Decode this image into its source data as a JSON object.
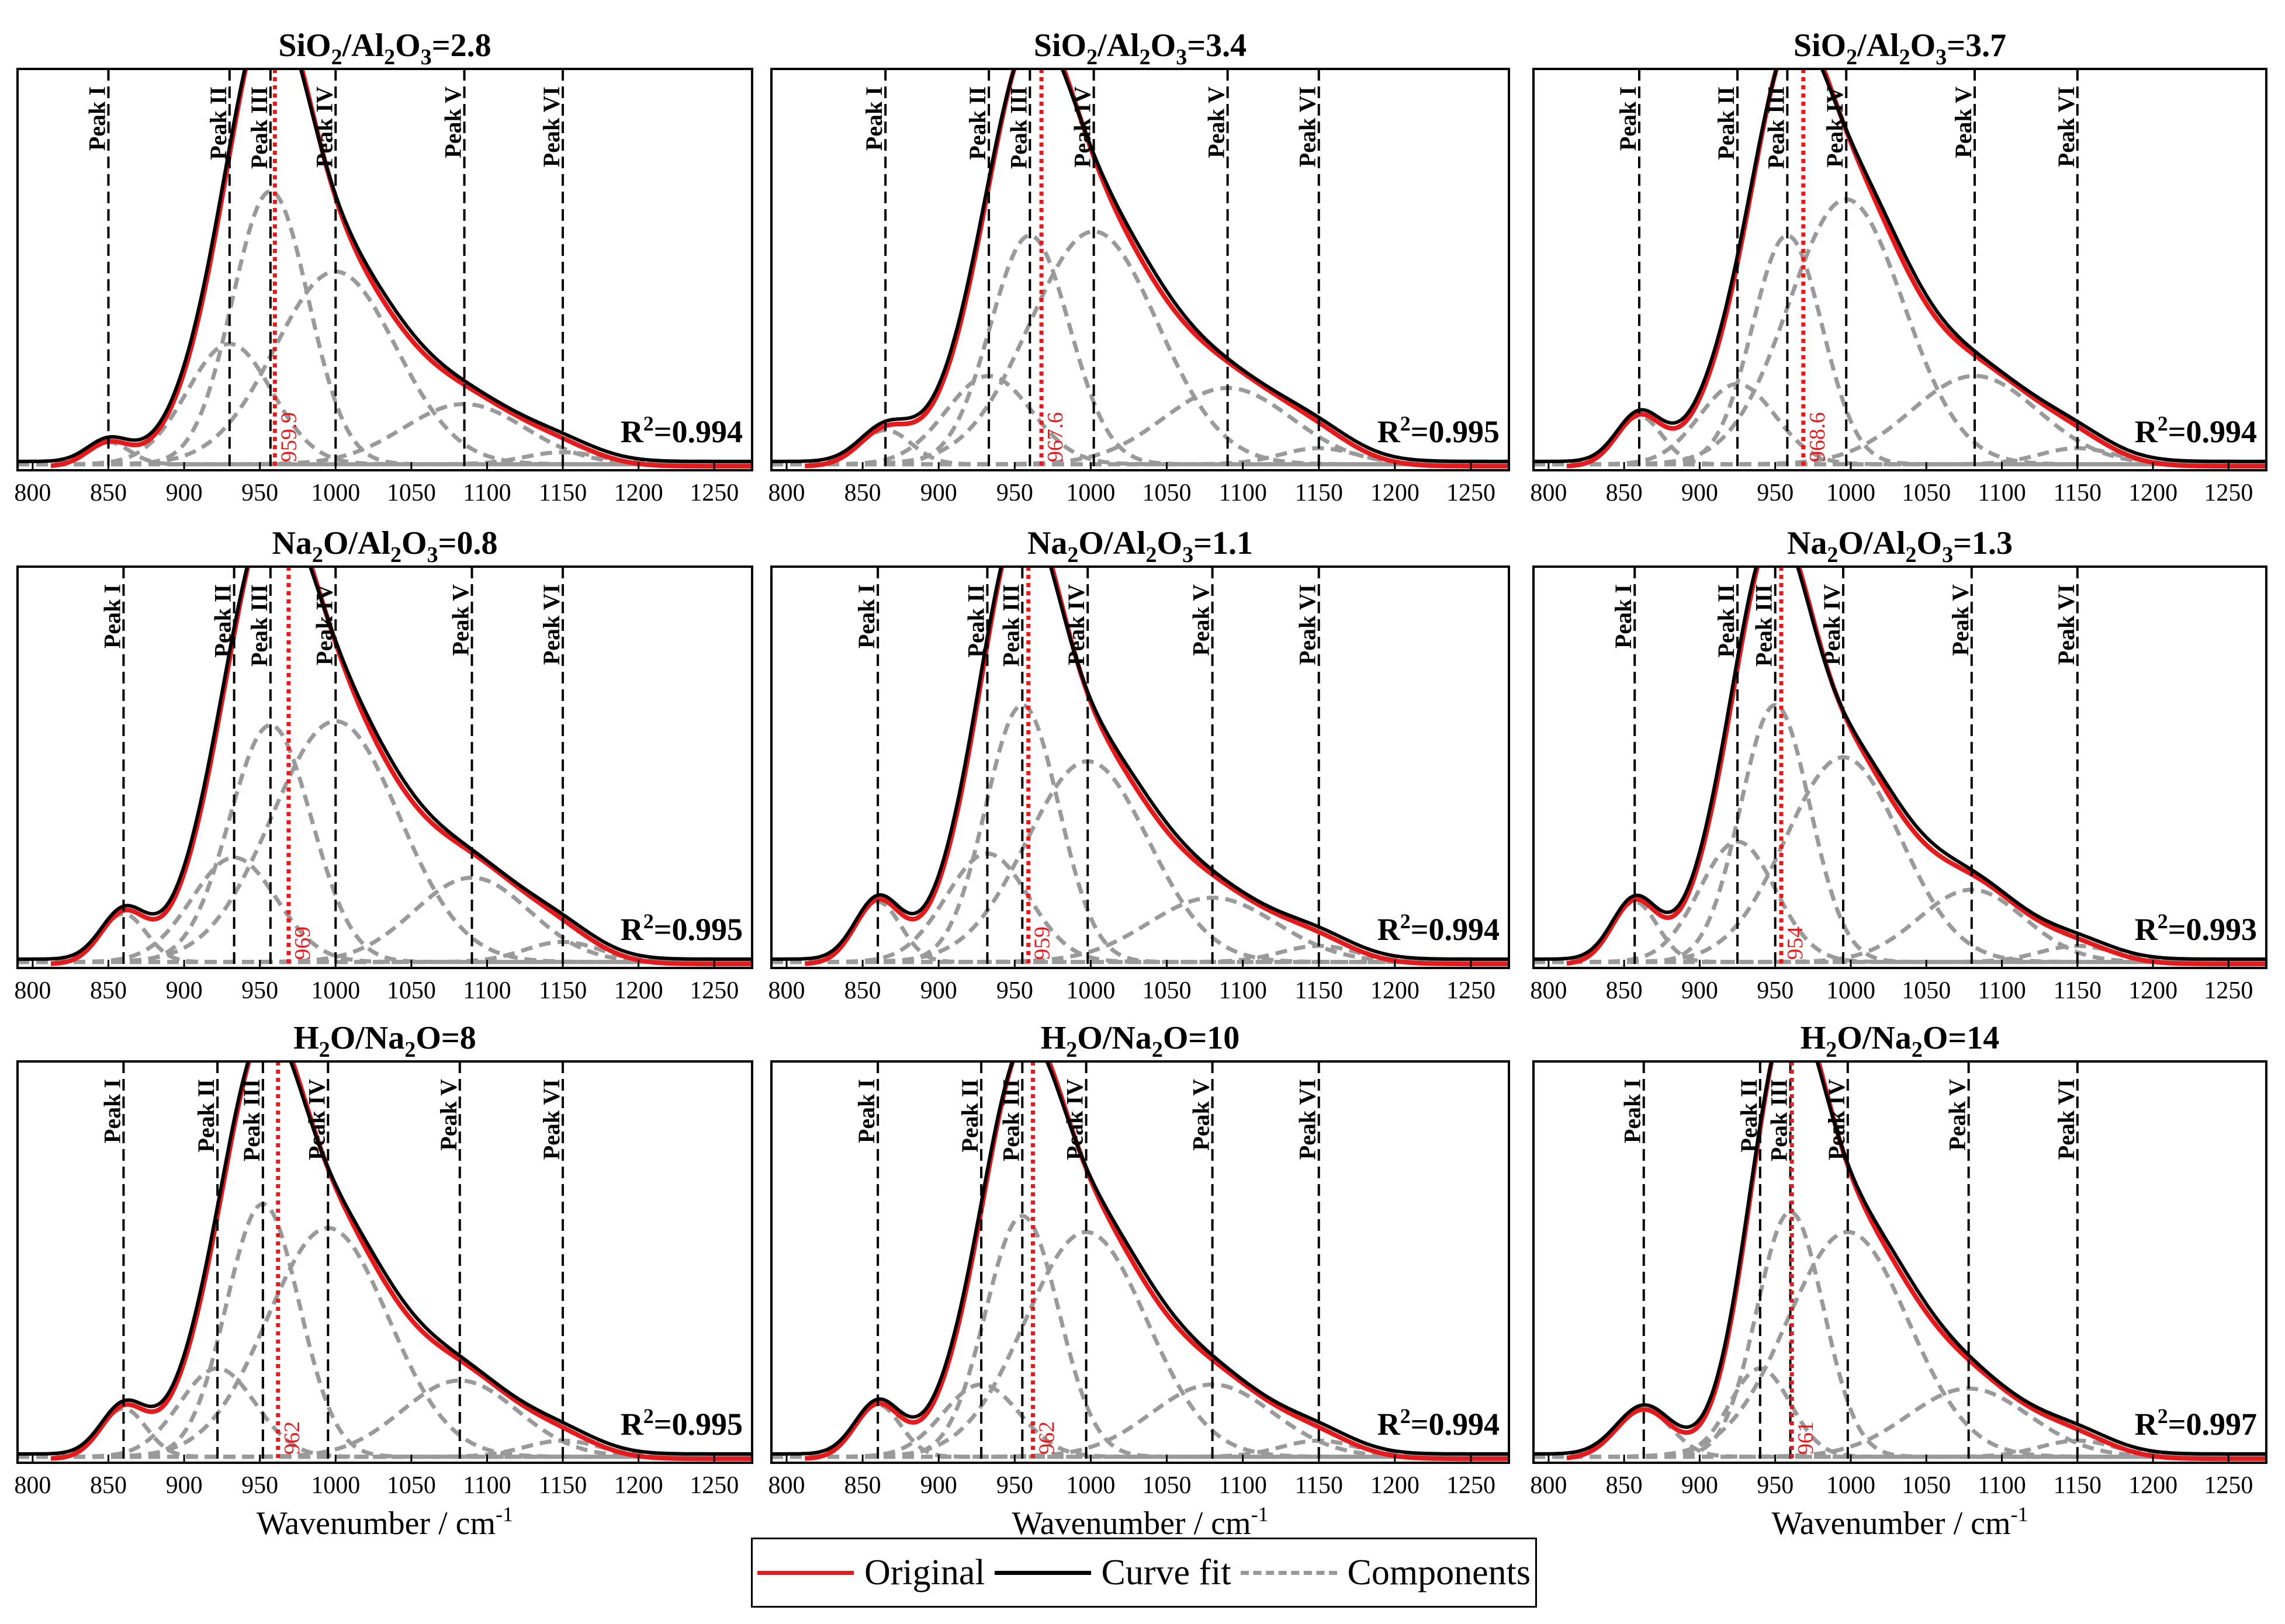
{
  "chart_data": [
    {
      "type": "line",
      "title": {
        "pre": "SiO",
        "s1": "2",
        "mid": "/Al",
        "s2": "2",
        "mid2": "O",
        "s3": "3",
        "post": "=2.8"
      },
      "peaks": [
        {
          "label": "Peak I",
          "x": 850
        },
        {
          "label": "Peak II",
          "x": 930
        },
        {
          "label": "Peak III",
          "x": 957
        },
        {
          "label": "Peak IV",
          "x": 1000
        },
        {
          "label": "Peak V",
          "x": 1085
        },
        {
          "label": "Peak VI",
          "x": 1150
        }
      ],
      "center": 959.9,
      "center_label": "959.9",
      "r2": "0.994",
      "components": [
        {
          "mu": 850,
          "sigma": 14,
          "amp": 0.055
        },
        {
          "mu": 930,
          "sigma": 28,
          "amp": 0.3
        },
        {
          "mu": 957,
          "sigma": 25,
          "amp": 0.68
        },
        {
          "mu": 1000,
          "sigma": 40,
          "amp": 0.48
        },
        {
          "mu": 1085,
          "sigma": 40,
          "amp": 0.15
        },
        {
          "mu": 1150,
          "sigma": 25,
          "amp": 0.03
        }
      ]
    },
    {
      "type": "line",
      "title": {
        "pre": "SiO",
        "s1": "2",
        "mid": "/Al",
        "s2": "2",
        "mid2": "O",
        "s3": "3",
        "post": "=3.4"
      },
      "peaks": [
        {
          "label": "Peak I",
          "x": 865
        },
        {
          "label": "Peak II",
          "x": 933
        },
        {
          "label": "Peak III",
          "x": 960
        },
        {
          "label": "Peak IV",
          "x": 1002
        },
        {
          "label": "Peak V",
          "x": 1090
        },
        {
          "label": "Peak VI",
          "x": 1150
        }
      ],
      "center": 967.6,
      "center_label": "967.6",
      "r2": "0.995",
      "components": [
        {
          "mu": 865,
          "sigma": 17,
          "amp": 0.085
        },
        {
          "mu": 933,
          "sigma": 28,
          "amp": 0.22
        },
        {
          "mu": 960,
          "sigma": 26,
          "amp": 0.57
        },
        {
          "mu": 1002,
          "sigma": 42,
          "amp": 0.58
        },
        {
          "mu": 1090,
          "sigma": 42,
          "amp": 0.19
        },
        {
          "mu": 1150,
          "sigma": 25,
          "amp": 0.04
        }
      ]
    },
    {
      "type": "line",
      "title": {
        "pre": "SiO",
        "s1": "2",
        "mid": "/Al",
        "s2": "2",
        "mid2": "O",
        "s3": "3",
        "post": "=3.7"
      },
      "peaks": [
        {
          "label": "Peak I",
          "x": 860
        },
        {
          "label": "Peak II",
          "x": 925
        },
        {
          "label": "Peak III",
          "x": 958
        },
        {
          "label": "Peak IV",
          "x": 997
        },
        {
          "label": "Peak V",
          "x": 1082
        },
        {
          "label": "Peak VI",
          "x": 1150
        }
      ],
      "center": 968.6,
      "center_label": "968.6",
      "r2": "0.994",
      "components": [
        {
          "mu": 860,
          "sigma": 15,
          "amp": 0.12
        },
        {
          "mu": 925,
          "sigma": 25,
          "amp": 0.2
        },
        {
          "mu": 958,
          "sigma": 23,
          "amp": 0.57
        },
        {
          "mu": 997,
          "sigma": 38,
          "amp": 0.66
        },
        {
          "mu": 1082,
          "sigma": 42,
          "amp": 0.22
        },
        {
          "mu": 1150,
          "sigma": 25,
          "amp": 0.04
        }
      ]
    },
    {
      "type": "line",
      "title": {
        "pre": "Na",
        "s1": "2",
        "mid": "O/Al",
        "s2": "2",
        "mid2": "O",
        "s3": "3",
        "post": "=0.8"
      },
      "peaks": [
        {
          "label": "Peak I",
          "x": 860
        },
        {
          "label": "Peak II",
          "x": 933
        },
        {
          "label": "Peak III",
          "x": 957
        },
        {
          "label": "Peak IV",
          "x": 1000
        },
        {
          "label": "Peak V",
          "x": 1090
        },
        {
          "label": "Peak VI",
          "x": 1150
        }
      ],
      "center": 969,
      "center_label": "969",
      "r2": "0.995",
      "components": [
        {
          "mu": 860,
          "sigma": 15,
          "amp": 0.12
        },
        {
          "mu": 933,
          "sigma": 28,
          "amp": 0.26
        },
        {
          "mu": 957,
          "sigma": 27,
          "amp": 0.59
        },
        {
          "mu": 1000,
          "sigma": 42,
          "amp": 0.6
        },
        {
          "mu": 1090,
          "sigma": 38,
          "amp": 0.21
        },
        {
          "mu": 1150,
          "sigma": 25,
          "amp": 0.05
        }
      ]
    },
    {
      "type": "line",
      "title": {
        "pre": "Na",
        "s1": "2",
        "mid": "O/Al",
        "s2": "2",
        "mid2": "O",
        "s3": "3",
        "post": "=1.1"
      },
      "peaks": [
        {
          "label": "Peak I",
          "x": 860
        },
        {
          "label": "Peak II",
          "x": 932
        },
        {
          "label": "Peak III",
          "x": 955
        },
        {
          "label": "Peak IV",
          "x": 998
        },
        {
          "label": "Peak V",
          "x": 1080
        },
        {
          "label": "Peak VI",
          "x": 1150
        }
      ],
      "center": 959,
      "center_label": "959",
      "r2": "0.994",
      "components": [
        {
          "mu": 860,
          "sigma": 15,
          "amp": 0.15
        },
        {
          "mu": 932,
          "sigma": 27,
          "amp": 0.27
        },
        {
          "mu": 955,
          "sigma": 24,
          "amp": 0.64
        },
        {
          "mu": 998,
          "sigma": 40,
          "amp": 0.5
        },
        {
          "mu": 1080,
          "sigma": 42,
          "amp": 0.16
        },
        {
          "mu": 1150,
          "sigma": 25,
          "amp": 0.04
        }
      ]
    },
    {
      "type": "line",
      "title": {
        "pre": "Na",
        "s1": "2",
        "mid": "O/Al",
        "s2": "2",
        "mid2": "O",
        "s3": "3",
        "post": "=1.3"
      },
      "peaks": [
        {
          "label": "Peak I",
          "x": 857
        },
        {
          "label": "Peak II",
          "x": 925
        },
        {
          "label": "Peak III",
          "x": 950
        },
        {
          "label": "Peak IV",
          "x": 995
        },
        {
          "label": "Peak V",
          "x": 1080
        },
        {
          "label": "Peak VI",
          "x": 1150
        }
      ],
      "center": 954,
      "center_label": "954",
      "r2": "0.993",
      "components": [
        {
          "mu": 857,
          "sigma": 15,
          "amp": 0.15
        },
        {
          "mu": 925,
          "sigma": 25,
          "amp": 0.3
        },
        {
          "mu": 950,
          "sigma": 23,
          "amp": 0.64
        },
        {
          "mu": 995,
          "sigma": 38,
          "amp": 0.51
        },
        {
          "mu": 1080,
          "sigma": 35,
          "amp": 0.18
        },
        {
          "mu": 1150,
          "sigma": 25,
          "amp": 0.04
        }
      ]
    },
    {
      "type": "line",
      "title": {
        "pre": "H",
        "s1": "2",
        "mid": "O/Na",
        "s2": "2",
        "mid2": "O",
        "s3": "",
        "post": "=8"
      },
      "peaks": [
        {
          "label": "Peak I",
          "x": 860
        },
        {
          "label": "Peak II",
          "x": 922
        },
        {
          "label": "Peak III",
          "x": 952
        },
        {
          "label": "Peak IV",
          "x": 995
        },
        {
          "label": "Peak V",
          "x": 1082
        },
        {
          "label": "Peak VI",
          "x": 1150
        }
      ],
      "center": 962,
      "center_label": "962",
      "r2": "0.995",
      "components": [
        {
          "mu": 860,
          "sigma": 15,
          "amp": 0.12
        },
        {
          "mu": 922,
          "sigma": 25,
          "amp": 0.22
        },
        {
          "mu": 952,
          "sigma": 24,
          "amp": 0.63
        },
        {
          "mu": 995,
          "sigma": 40,
          "amp": 0.57
        },
        {
          "mu": 1082,
          "sigma": 38,
          "amp": 0.19
        },
        {
          "mu": 1150,
          "sigma": 25,
          "amp": 0.04
        }
      ]
    },
    {
      "type": "line",
      "title": {
        "pre": "H",
        "s1": "2",
        "mid": "O/Na",
        "s2": "2",
        "mid2": "O",
        "s3": "",
        "post": "=10"
      },
      "peaks": [
        {
          "label": "Peak I",
          "x": 860
        },
        {
          "label": "Peak II",
          "x": 928
        },
        {
          "label": "Peak III",
          "x": 955
        },
        {
          "label": "Peak IV",
          "x": 997
        },
        {
          "label": "Peak V",
          "x": 1080
        },
        {
          "label": "Peak VI",
          "x": 1150
        }
      ],
      "center": 962,
      "center_label": "962",
      "r2": "0.994",
      "components": [
        {
          "mu": 860,
          "sigma": 15,
          "amp": 0.13
        },
        {
          "mu": 928,
          "sigma": 25,
          "amp": 0.18
        },
        {
          "mu": 955,
          "sigma": 24,
          "amp": 0.6
        },
        {
          "mu": 997,
          "sigma": 40,
          "amp": 0.56
        },
        {
          "mu": 1080,
          "sigma": 40,
          "amp": 0.18
        },
        {
          "mu": 1150,
          "sigma": 25,
          "amp": 0.04
        }
      ]
    },
    {
      "type": "line",
      "title": {
        "pre": "H",
        "s1": "2",
        "mid": "O/Na",
        "s2": "2",
        "mid2": "O",
        "s3": "",
        "post": "=14"
      },
      "peaks": [
        {
          "label": "Peak I",
          "x": 863
        },
        {
          "label": "Peak II",
          "x": 940
        },
        {
          "label": "Peak III",
          "x": 960
        },
        {
          "label": "Peak IV",
          "x": 998
        },
        {
          "label": "Peak V",
          "x": 1078
        },
        {
          "label": "Peak VI",
          "x": 1150
        }
      ],
      "center": 961,
      "center_label": "961",
      "r2": "0.997",
      "components": [
        {
          "mu": 863,
          "sigma": 18,
          "amp": 0.12
        },
        {
          "mu": 940,
          "sigma": 20,
          "amp": 0.22
        },
        {
          "mu": 960,
          "sigma": 22,
          "amp": 0.61
        },
        {
          "mu": 998,
          "sigma": 40,
          "amp": 0.56
        },
        {
          "mu": 1078,
          "sigma": 40,
          "amp": 0.17
        },
        {
          "mu": 1150,
          "sigma": 25,
          "amp": 0.04
        }
      ]
    }
  ],
  "axes": {
    "xlim": [
      790,
      1275
    ],
    "ylim": [
      0,
      1.0
    ],
    "xticks": [
      800,
      850,
      900,
      950,
      1000,
      1050,
      1100,
      1150,
      1200,
      1250
    ],
    "xlabel": {
      "text": "Wavenumber / cm",
      "sup": "-1"
    }
  },
  "r2_prefix": "R",
  "r2_sup": "2",
  "legend": [
    {
      "label": "Original",
      "color": "#e41a1c",
      "style": "solid"
    },
    {
      "label": "Curve fit",
      "color": "#000000",
      "style": "solid"
    },
    {
      "label": "Components",
      "color": "#999999",
      "style": "dashed"
    }
  ]
}
